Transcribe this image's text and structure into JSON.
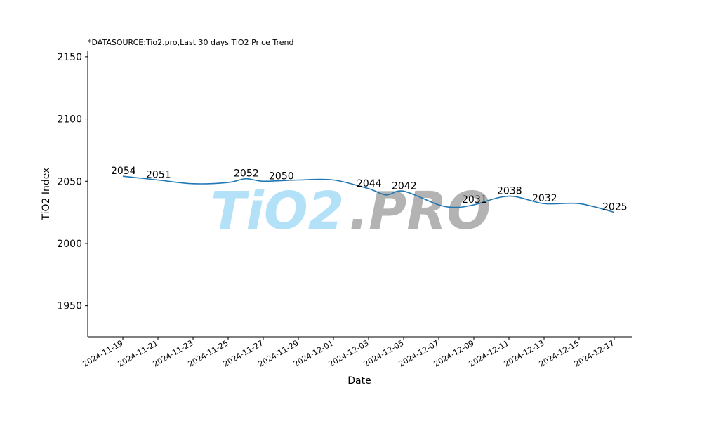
{
  "watermark": {
    "part1": "TiO2",
    "part2": ".PRO",
    "color1": "#b3e1f7",
    "color2": "#b3b3b3"
  },
  "chart_data": {
    "type": "line",
    "subtitle": "*DATASOURCE:Tio2.pro,Last 30 days TiO2 Price Trend",
    "xlabel": "Date",
    "ylabel": "TiO2 Index",
    "ylim": [
      1925,
      2155
    ],
    "xlim": [
      "2024-11-17",
      "2024-12-18"
    ],
    "yticks": [
      1950,
      2000,
      2050,
      2100,
      2150
    ],
    "xticks": [
      "2024-11-19",
      "2024-11-21",
      "2024-11-23",
      "2024-11-25",
      "2024-11-27",
      "2024-11-29",
      "2024-12-01",
      "2024-12-03",
      "2024-12-05",
      "2024-12-07",
      "2024-12-09",
      "2024-12-11",
      "2024-12-13",
      "2024-12-15",
      "2024-12-17"
    ],
    "line_color": "#1f77b4",
    "grid": false,
    "series": [
      {
        "x": [
          "2024-11-19",
          "2024-11-21",
          "2024-11-23",
          "2024-11-25",
          "2024-11-26",
          "2024-11-27",
          "2024-11-29",
          "2024-12-01",
          "2024-12-03",
          "2024-12-04",
          "2024-12-05",
          "2024-12-07",
          "2024-12-08",
          "2024-12-09",
          "2024-12-11",
          "2024-12-13",
          "2024-12-15",
          "2024-12-17"
        ],
        "y": [
          2054,
          2051,
          2048,
          2049,
          2052,
          2050,
          2051,
          2051,
          2044,
          2039,
          2042,
          2031,
          2029,
          2031,
          2038,
          2032,
          2032,
          2025
        ]
      }
    ],
    "data_labels": [
      {
        "x": "2024-11-19",
        "y": 2054,
        "text": "2054"
      },
      {
        "x": "2024-11-21",
        "y": 2051,
        "text": "2051"
      },
      {
        "x": "2024-11-26",
        "y": 2052,
        "text": "2052"
      },
      {
        "x": "2024-11-28",
        "y": 2050,
        "text": "2050"
      },
      {
        "x": "2024-12-03",
        "y": 2044,
        "text": "2044"
      },
      {
        "x": "2024-12-05",
        "y": 2042,
        "text": "2042"
      },
      {
        "x": "2024-12-09",
        "y": 2031,
        "text": "2031"
      },
      {
        "x": "2024-12-11",
        "y": 2038,
        "text": "2038"
      },
      {
        "x": "2024-12-13",
        "y": 2032,
        "text": "2032"
      },
      {
        "x": "2024-12-17",
        "y": 2025,
        "text": "2025"
      }
    ]
  }
}
